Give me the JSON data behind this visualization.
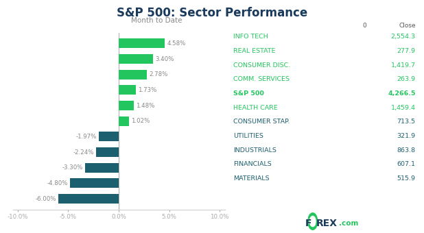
{
  "title": "S&P 500: Sector Performance",
  "subtitle": "Month to Date",
  "bar_values": [
    4.58,
    3.4,
    2.78,
    1.73,
    1.48,
    1.02,
    -1.97,
    -2.24,
    -3.3,
    -4.8,
    -6.0
  ],
  "bar_color_pos": "#22c55e",
  "bar_color_neg": "#1c5f6e",
  "table_labels": [
    "INFO TECH",
    "REAL ESTATE",
    "CONSUMER DISC.",
    "COMM. SERVICES",
    "S&P 500",
    "HEALTH CARE",
    "CONSUMER STAP.",
    "UTILITIES",
    "INDUSTRIALS",
    "FINANCIALS",
    "MATERIALS"
  ],
  "table_values": [
    "2,554.3",
    "277.9",
    "1,419.7",
    "263.9",
    "4,266.5",
    "1,459.4",
    "713.5",
    "321.9",
    "863.8",
    "607.1",
    "515.9"
  ],
  "table_label_colors": [
    "#22c55e",
    "#22c55e",
    "#22c55e",
    "#22c55e",
    "#22c55e",
    "#22c55e",
    "#1c5f6e",
    "#1c5f6e",
    "#1c5f6e",
    "#1c5f6e",
    "#1c5f6e"
  ],
  "table_value_colors": [
    "#22c55e",
    "#22c55e",
    "#22c55e",
    "#22c55e",
    "#22c55e",
    "#22c55e",
    "#1c5f6e",
    "#1c5f6e",
    "#1c5f6e",
    "#1c5f6e",
    "#1c5f6e"
  ],
  "xlim": [
    -10.5,
    10.5
  ],
  "xticks": [
    -10.0,
    -5.0,
    0.0,
    5.0,
    10.0
  ],
  "xtick_labels": [
    "-10.0%",
    "-5.0%",
    "0.0%",
    "5.0%",
    "10.0%"
  ],
  "col_header_0": "0",
  "col_header_1": "Close",
  "title_color": "#1a3a5c",
  "subtitle_color": "#888888",
  "label_color": "#888888",
  "forex_dark": "#1a3a5c",
  "forex_green": "#22c55e",
  "background_color": "#ffffff"
}
